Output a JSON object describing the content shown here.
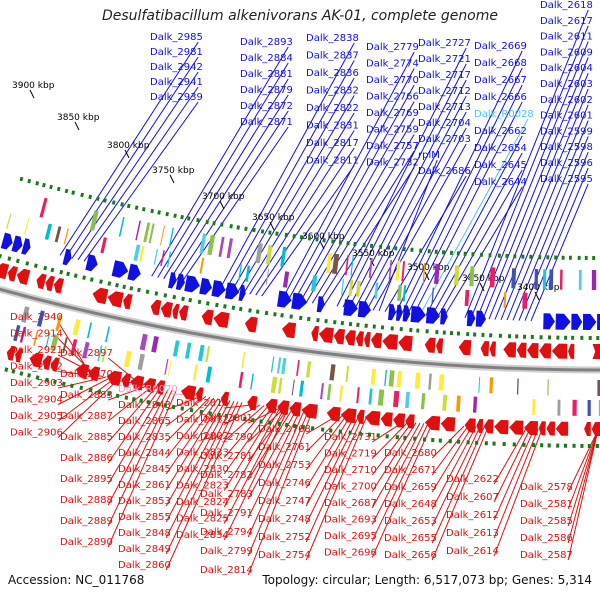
{
  "title": "Desulfatibacillum alkenivorans AK-01, complete genome",
  "footer": {
    "accession": "Accession: NC_011768",
    "summary": "Topology: circular; Length: 6,517,073 bp; Genes: 5,314"
  },
  "colors": {
    "forward_gene": "#1010e0",
    "reverse_gene": "#e01010",
    "rna_label": "#4fc3f7",
    "pseudo_label": "#e8a0d8",
    "backbone": "#808080",
    "tick": "#1a7a1a"
  },
  "scale": {
    "unit": "kbp",
    "ticks": [
      "3900 kbp",
      "3850 kbp",
      "3800 kbp",
      "3750 kbp",
      "3700 kbp",
      "3650 kbp",
      "3600 kbp",
      "3550 kbp",
      "3500 kbp",
      "3450 kbp",
      "3400 kbp"
    ]
  },
  "forward_labels": [
    "Dalk_2985",
    "Dalk_2981",
    "Dalk_2942",
    "Dalk_2941",
    "Dalk_2939",
    "Dalk_2893",
    "Dalk_2884",
    "Dalk_2881",
    "Dalk_2879",
    "Dalk_2872",
    "Dalk_2871",
    "Dalk_2838",
    "Dalk_2837",
    "Dalk_2836",
    "Dalk_2832",
    "Dalk_2822",
    "Dalk_2831",
    "Dalk_2817",
    "Dalk_2811",
    "Dalk_2779",
    "Dalk_2774",
    "Dalk_2770",
    "Dalk_2766",
    "Dalk_2769",
    "Dalk_2759",
    "Dalk_2757",
    "Dalk_2732",
    "Dalk_2727",
    "Dalk_2721",
    "Dalk_2717",
    "Dalk_2712",
    "Dalk_2713",
    "Dalk_2704",
    "Dalk_2703",
    "rplM",
    "Dalk_2686",
    "Dalk_2669",
    "Dalk_2668",
    "Dalk_2667",
    "Dalk_2666",
    "Dalk_R0028",
    "Dalk_2662",
    "Dalk_2654",
    "Dalk_2645",
    "Dalk_2644",
    "Dalk_2618",
    "Dalk_2617",
    "Dalk_2611",
    "Dalk_2609",
    "Dalk_2604",
    "Dalk_2603",
    "Dalk_2602",
    "Dalk_2601",
    "Dalk_2599",
    "Dalk_2598",
    "Dalk_2596",
    "Dalk_2595"
  ],
  "reverse_labels": [
    "Dalk_2940",
    "Dalk_2914",
    "Dalk_2921",
    "Dalk_2902",
    "Dalk_2903",
    "Dalk_2904",
    "Dalk_2905",
    "Dalk_2906",
    "Dalk_2897",
    "Dalk_2870",
    "Dalk_2883",
    "Dalk_2887",
    "Dalk_2885",
    "Dalk_2886",
    "Dalk_2895",
    "Dalk_2888",
    "Dalk_2889",
    "Dalk_2890",
    "Dalk_R0070",
    "Dalk_2843",
    "Dalk_2865",
    "Dalk_2835",
    "Dalk_2844",
    "Dalk_2845",
    "Dalk_2861",
    "Dalk_2853",
    "Dalk_2855",
    "Dalk_2848",
    "Dalk_2849",
    "Dalk_2860",
    "Dalk_2816",
    "Dalk_2812",
    "Dalk_2802",
    "Dalk_2833",
    "Dalk_2830",
    "Dalk_2823",
    "Dalk_2824",
    "Dalk_2825",
    "Dalk_2834",
    "Dalk_2801",
    "Dalk_2790",
    "Dalk_2781",
    "Dalk_2782",
    "Dalk_2783",
    "Dalk_2791",
    "Dalk_2794",
    "Dalk_2799",
    "Dalk_2814",
    "Dalk_2768",
    "Dalk_2761",
    "Dalk_2753",
    "Dalk_2746",
    "Dalk_2747",
    "Dalk_2748",
    "Dalk_2752",
    "Dalk_2754",
    "Dalk_2731",
    "Dalk_2719",
    "Dalk_2710",
    "Dalk_2700",
    "Dalk_2687",
    "Dalk_2693",
    "Dalk_2695",
    "Dalk_2696",
    "Dalk_2680",
    "Dalk_2671",
    "Dalk_2659",
    "Dalk_2648",
    "Dalk_2653",
    "Dalk_2655",
    "Dalk_2656",
    "Dalk_2622",
    "Dalk_2607",
    "Dalk_2612",
    "Dalk_2613",
    "Dalk_2614",
    "Dalk_2578",
    "Dalk_2581",
    "Dalk_2585",
    "Dalk_2586",
    "Dalk_2587"
  ]
}
